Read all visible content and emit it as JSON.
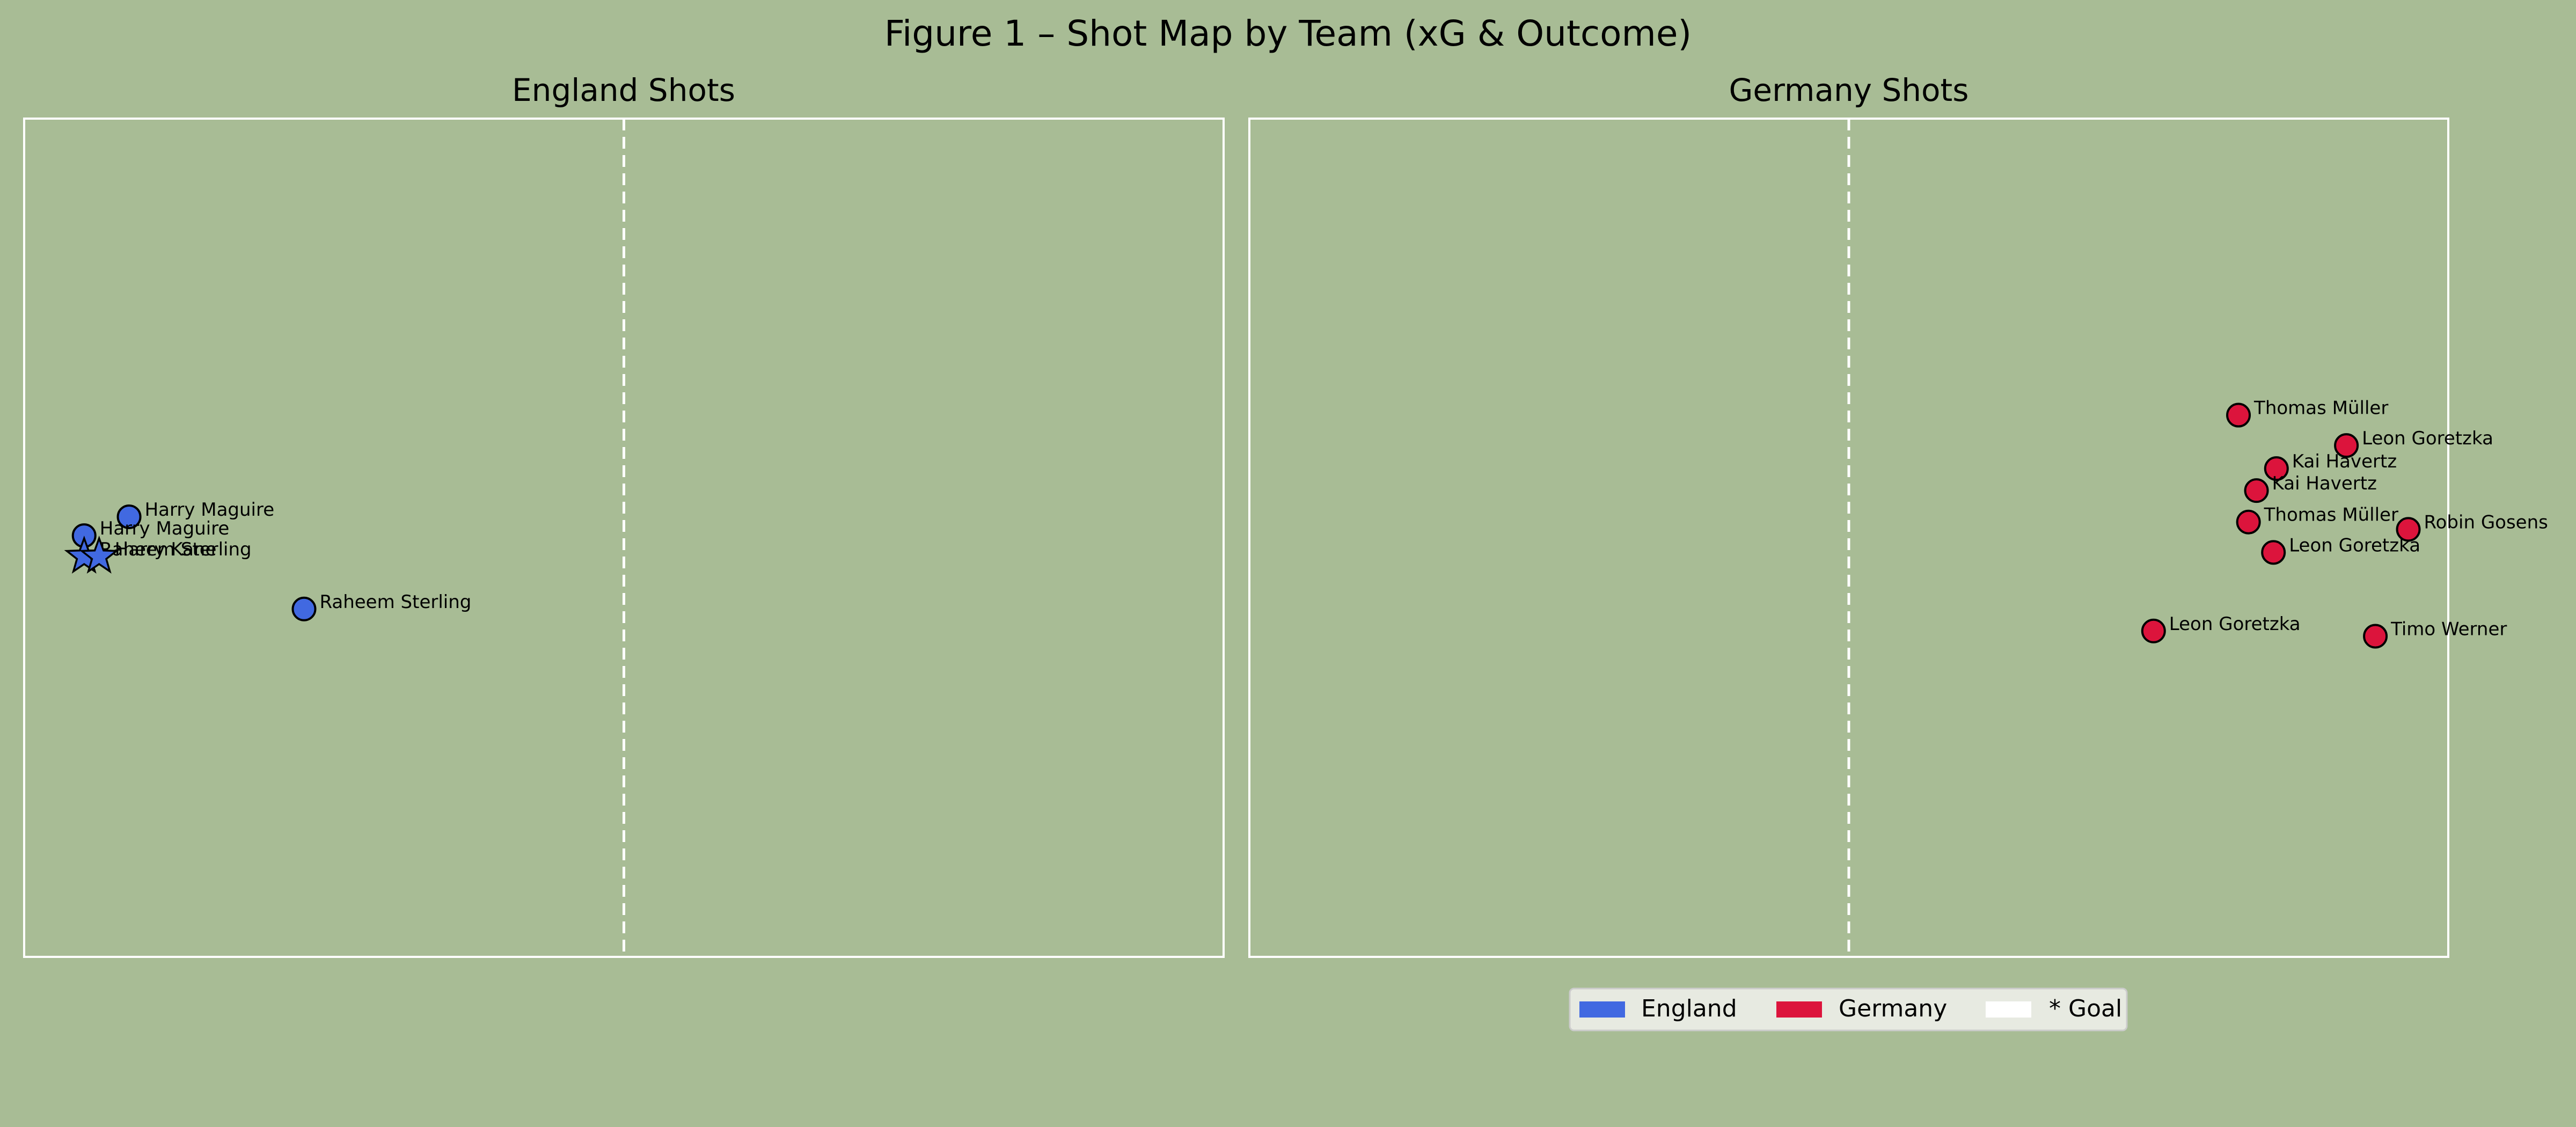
{
  "figure": {
    "title": "Figure 1 – Shot Map by Team (xG & Outcome)"
  },
  "colors": {
    "background": "#a8bc95",
    "pitch_line": "#ffffff",
    "england": "#4169e1",
    "germany": "#dc143c",
    "outline": "#000000"
  },
  "legend": {
    "placement": "lower-center",
    "items": [
      {
        "label": "England",
        "color": "#4169e1"
      },
      {
        "label": "Germany",
        "color": "#dc143c"
      },
      {
        "label": "* Goal",
        "color": "#ffffff"
      }
    ]
  },
  "chart_data": [
    {
      "type": "scatter",
      "title": "England Shots",
      "xlim": [
        0,
        120
      ],
      "ylim": [
        0,
        80
      ],
      "grid": false,
      "halfway_line_x": 60,
      "marker_color": "#4169e1",
      "series": [
        {
          "name": "England",
          "points": [
            {
              "x": 10.5,
              "y": 42.0,
              "player": "Harry Maguire",
              "outcome": "shot"
            },
            {
              "x": 6.0,
              "y": 40.2,
              "player": "Harry Maguire",
              "outcome": "shot"
            },
            {
              "x": 6.0,
              "y": 38.2,
              "player": "Raheem Sterling",
              "outcome": "goal"
            },
            {
              "x": 7.5,
              "y": 38.2,
              "player": "Harry Kane",
              "outcome": "goal"
            },
            {
              "x": 28.0,
              "y": 33.2,
              "player": "Raheem Sterling",
              "outcome": "shot"
            }
          ]
        }
      ]
    },
    {
      "type": "scatter",
      "title": "Germany Shots",
      "xlim": [
        0,
        120
      ],
      "ylim": [
        0,
        80
      ],
      "grid": false,
      "halfway_line_x": 60,
      "marker_color": "#dc143c",
      "series": [
        {
          "name": "Germany",
          "points": [
            {
              "x": 99.0,
              "y": 51.7,
              "player": "Thomas Müller",
              "outcome": "shot"
            },
            {
              "x": 109.8,
              "y": 48.8,
              "player": "Leon Goretzka",
              "outcome": "shot"
            },
            {
              "x": 102.8,
              "y": 46.6,
              "player": "Kai Havertz",
              "outcome": "shot"
            },
            {
              "x": 100.8,
              "y": 44.5,
              "player": "Kai Havertz",
              "outcome": "shot"
            },
            {
              "x": 100.0,
              "y": 41.5,
              "player": "Thomas Müller",
              "outcome": "shot"
            },
            {
              "x": 116.0,
              "y": 40.8,
              "player": "Robin Gosens",
              "outcome": "shot"
            },
            {
              "x": 102.5,
              "y": 38.6,
              "player": "Leon Goretzka",
              "outcome": "shot"
            },
            {
              "x": 90.5,
              "y": 31.1,
              "player": "Leon Goretzka",
              "outcome": "shot"
            },
            {
              "x": 112.7,
              "y": 30.6,
              "player": "Timo Werner",
              "outcome": "shot"
            }
          ]
        }
      ]
    }
  ]
}
